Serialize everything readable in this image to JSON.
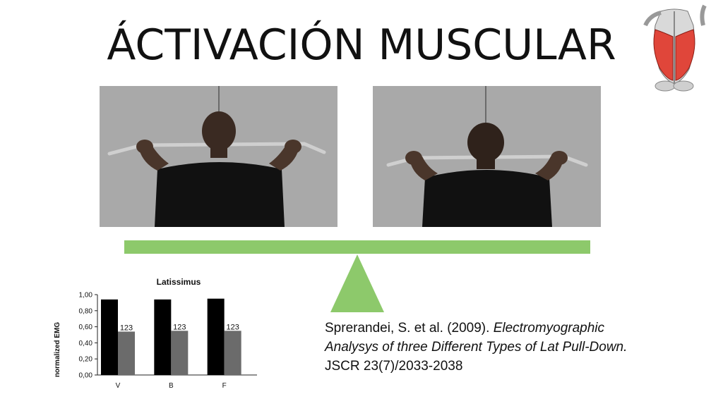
{
  "slide": {
    "title": "ÁCTIVACIÓN MUSCULAR"
  },
  "citation": {
    "line1_normal": "Sprerandei, S. et al. (2009). ",
    "line1_italic": "Electromyographic",
    "line2_italic": "Analysys of three Different Types of Lat Pull-Down.",
    "line3": "JSCR 23(7)/2033-2038"
  },
  "chart_data": {
    "type": "bar",
    "title": "Latissimus",
    "ylabel": "normalized EMG",
    "xlabel": "",
    "categories": [
      "V",
      "B",
      "F"
    ],
    "ylim": [
      0,
      1
    ],
    "yticks": [
      "0,00",
      "0,20",
      "0,40",
      "0,60",
      "0,80",
      "1,00"
    ],
    "series": [
      {
        "name": "",
        "color": "#000000",
        "values": [
          0.94,
          0.94,
          0.95
        ]
      },
      {
        "name": "",
        "color": "#6b6b6b",
        "values": [
          0.54,
          0.55,
          0.55
        ],
        "labels": [
          "123",
          "123",
          "123"
        ]
      }
    ]
  },
  "colors": {
    "beam": "#8dc96b",
    "photo_bg": "#a9a9a9"
  }
}
